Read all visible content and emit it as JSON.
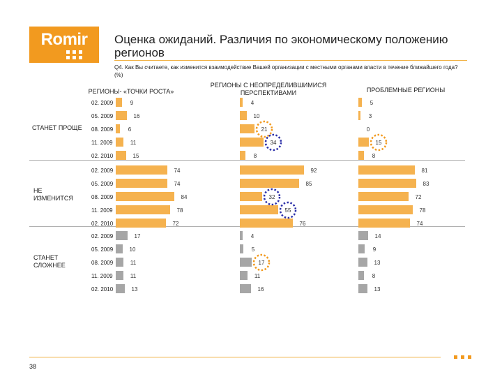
{
  "logo": {
    "text": "Romir",
    "color": "#f29a1f"
  },
  "title": "Оценка ожиданий. Различия по экономическому положению регионов",
  "question": "Q4. Как Вы считаете, как изменится взаимодействие Вашей организации с местными органами власти в течение ближайшего года? (%)",
  "page_number": "38",
  "colors": {
    "orange": "#f5b24f",
    "gray": "#a6a6a6",
    "circle_orange": "#f29a1f",
    "circle_blue": "#2b2fa8"
  },
  "chart_data": {
    "type": "bar",
    "orientation": "horizontal",
    "periods": [
      "02. 2009",
      "05. 2009",
      "08. 2009",
      "11. 2009",
      "02. 2010"
    ],
    "columns": [
      "РЕГИОНЫ- «ТОЧКИ РОСТА»",
      "РЕГИОНЫ С НЕОПРЕДЕЛИВШИМИСЯ ПЕРСПЕКТИВАМИ",
      "ПРОБЛЕМНЫЕ РЕГИОНЫ"
    ],
    "sections": [
      {
        "label": "СТАНЕТ ПРОЩЕ",
        "color": "orange",
        "values": [
          [
            9,
            16,
            6,
            11,
            15
          ],
          [
            4,
            10,
            21,
            34,
            8
          ],
          [
            5,
            3,
            0,
            15,
            8
          ]
        ]
      },
      {
        "label": "НЕ ИЗМЕНИТСЯ",
        "color": "orange",
        "values": [
          [
            74,
            74,
            84,
            78,
            72
          ],
          [
            92,
            85,
            32,
            55,
            76
          ],
          [
            81,
            83,
            72,
            78,
            74
          ]
        ]
      },
      {
        "label": "СТАНЕТ СЛОЖНЕЕ",
        "color": "gray",
        "values": [
          [
            17,
            10,
            11,
            11,
            13
          ],
          [
            4,
            5,
            17,
            11,
            16
          ],
          [
            14,
            9,
            13,
            8,
            13
          ]
        ]
      }
    ],
    "highlights": [
      {
        "section": 0,
        "column": 1,
        "period": 2,
        "color": "orange"
      },
      {
        "section": 0,
        "column": 1,
        "period": 3,
        "color": "blue"
      },
      {
        "section": 0,
        "column": 2,
        "period": 3,
        "color": "orange"
      },
      {
        "section": 1,
        "column": 1,
        "period": 2,
        "color": "blue"
      },
      {
        "section": 1,
        "column": 1,
        "period": 3,
        "color": "blue"
      },
      {
        "section": 2,
        "column": 1,
        "period": 2,
        "color": "orange"
      }
    ],
    "xlim": [
      0,
      100
    ],
    "grid": false,
    "legend": "none"
  }
}
